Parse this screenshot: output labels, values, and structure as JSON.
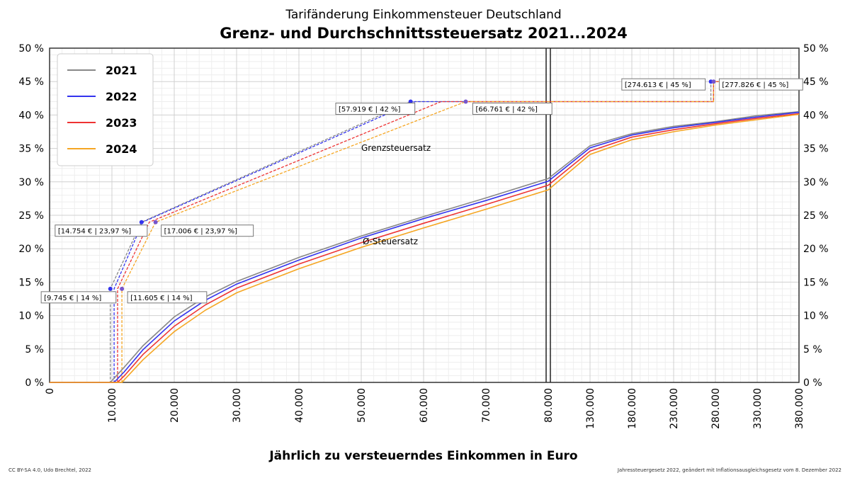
{
  "chart_data": {
    "type": "line",
    "subtitle": "Tarifänderung Einkommensteuer Deutschland",
    "title": "Grenz- und Durchschnittssteuersatz 2021...2024",
    "xlabel": "Jährlich zu versteuerndes Einkommen in Euro",
    "ylabel": "",
    "x_scale": "piecewise linear: 0–80.000 wide segment, 80.000–380.000 compressed segment",
    "xlim": [
      0,
      380000
    ],
    "ylim": [
      0,
      50
    ],
    "x_ticks_left": [
      "0",
      "10.000",
      "20.000",
      "30.000",
      "40.000",
      "50.000",
      "60.000",
      "70.000",
      "80.000"
    ],
    "x_ticks_right": [
      "130.000",
      "180.000",
      "230.000",
      "280.000",
      "330.000",
      "380.000"
    ],
    "y_ticks": [
      "0 %",
      "5 %",
      "10 %",
      "15 %",
      "20 %",
      "25 %",
      "30 %",
      "35 %",
      "40 %",
      "45 %",
      "50 %"
    ],
    "grid": true,
    "legend_position": "top-left",
    "legend": [
      "2021",
      "2022",
      "2023",
      "2024"
    ],
    "colors": {
      "2021": "#888888",
      "2022": "#3333ee",
      "2023": "#ee3333",
      "2024": "#f5a623"
    },
    "curve_labels": {
      "marginal": "Grenzsteuersatz",
      "average": "Ø-Steuersatz"
    },
    "series": [
      {
        "name": "2021",
        "type": "marginal",
        "points": [
          [
            0,
            0
          ],
          [
            9744,
            0
          ],
          [
            9744,
            14
          ],
          [
            14753,
            23.97
          ],
          [
            57918,
            42
          ],
          [
            274612,
            42
          ],
          [
            274612,
            45
          ],
          [
            380000,
            45
          ]
        ]
      },
      {
        "name": "2022",
        "type": "marginal",
        "points": [
          [
            0,
            0
          ],
          [
            10347,
            0
          ],
          [
            10347,
            14
          ],
          [
            14926,
            23.97
          ],
          [
            58596,
            42
          ],
          [
            277825,
            42
          ],
          [
            277825,
            45
          ],
          [
            380000,
            45
          ]
        ]
      },
      {
        "name": "2023",
        "type": "marginal",
        "points": [
          [
            0,
            0
          ],
          [
            10908,
            0
          ],
          [
            10908,
            14
          ],
          [
            15999,
            23.97
          ],
          [
            62809,
            42
          ],
          [
            277825,
            42
          ],
          [
            277825,
            45
          ],
          [
            380000,
            45
          ]
        ]
      },
      {
        "name": "2024",
        "type": "marginal",
        "points": [
          [
            0,
            0
          ],
          [
            11604,
            0
          ],
          [
            11604,
            14
          ],
          [
            17005,
            23.97
          ],
          [
            66760,
            42
          ],
          [
            277825,
            42
          ],
          [
            277825,
            45
          ],
          [
            380000,
            45
          ]
        ]
      },
      {
        "name": "2021",
        "type": "average",
        "points": [
          [
            0,
            0
          ],
          [
            9744,
            0
          ],
          [
            12000,
            2.3
          ],
          [
            15000,
            5.5
          ],
          [
            20000,
            9.8
          ],
          [
            25000,
            12.8
          ],
          [
            30000,
            15.1
          ],
          [
            40000,
            18.7
          ],
          [
            50000,
            21.9
          ],
          [
            60000,
            24.8
          ],
          [
            70000,
            27.6
          ],
          [
            80000,
            30.5
          ],
          [
            130000,
            35.4
          ],
          [
            180000,
            37.2
          ],
          [
            230000,
            38.3
          ],
          [
            280000,
            39.0
          ],
          [
            330000,
            39.9
          ],
          [
            380000,
            40.5
          ]
        ]
      },
      {
        "name": "2022",
        "type": "average",
        "points": [
          [
            0,
            0
          ],
          [
            10347,
            0
          ],
          [
            12000,
            1.6
          ],
          [
            15000,
            4.9
          ],
          [
            20000,
            9.2
          ],
          [
            25000,
            12.3
          ],
          [
            30000,
            14.7
          ],
          [
            40000,
            18.3
          ],
          [
            50000,
            21.6
          ],
          [
            60000,
            24.5
          ],
          [
            70000,
            27.2
          ],
          [
            80000,
            30.1
          ],
          [
            130000,
            35.1
          ],
          [
            180000,
            37.0
          ],
          [
            230000,
            38.1
          ],
          [
            280000,
            38.9
          ],
          [
            330000,
            39.7
          ],
          [
            380000,
            40.4
          ]
        ]
      },
      {
        "name": "2023",
        "type": "average",
        "points": [
          [
            0,
            0
          ],
          [
            10908,
            0
          ],
          [
            12000,
            1.0
          ],
          [
            15000,
            4.2
          ],
          [
            20000,
            8.4
          ],
          [
            25000,
            11.6
          ],
          [
            30000,
            14.1
          ],
          [
            40000,
            17.7
          ],
          [
            50000,
            20.9
          ],
          [
            60000,
            23.8
          ],
          [
            70000,
            26.6
          ],
          [
            80000,
            29.5
          ],
          [
            130000,
            34.6
          ],
          [
            180000,
            36.7
          ],
          [
            230000,
            37.8
          ],
          [
            280000,
            38.7
          ],
          [
            330000,
            39.5
          ],
          [
            380000,
            40.2
          ]
        ]
      },
      {
        "name": "2024",
        "type": "average",
        "points": [
          [
            0,
            0
          ],
          [
            11604,
            0
          ],
          [
            12000,
            0.4
          ],
          [
            15000,
            3.4
          ],
          [
            20000,
            7.6
          ],
          [
            25000,
            10.8
          ],
          [
            30000,
            13.4
          ],
          [
            40000,
            17.0
          ],
          [
            50000,
            20.2
          ],
          [
            60000,
            23.1
          ],
          [
            70000,
            25.9
          ],
          [
            80000,
            28.8
          ],
          [
            130000,
            34.1
          ],
          [
            180000,
            36.3
          ],
          [
            230000,
            37.5
          ],
          [
            280000,
            38.5
          ],
          [
            330000,
            39.3
          ],
          [
            380000,
            40.1
          ]
        ]
      }
    ],
    "annotations": [
      {
        "text": "[9.745 € | 14 %]",
        "x": 9745,
        "y": 14,
        "side": "left"
      },
      {
        "text": "[11.605 € | 14 %]",
        "x": 11605,
        "y": 14,
        "side": "right"
      },
      {
        "text": "[14.754 € | 23,97 %]",
        "x": 14754,
        "y": 23.97,
        "side": "left"
      },
      {
        "text": "[17.006 € | 23,97 %]",
        "x": 17006,
        "y": 23.97,
        "side": "right"
      },
      {
        "text": "[57.919 € | 42 %]",
        "x": 57919,
        "y": 42,
        "side": "left"
      },
      {
        "text": "[66.761 € | 42 %]",
        "x": 66761,
        "y": 42,
        "side": "right"
      },
      {
        "text": "[274.613 € | 45 %]",
        "x": 274613,
        "y": 45,
        "side": "left"
      },
      {
        "text": "[277.826 € | 45 %]",
        "x": 277826,
        "y": 45,
        "side": "right"
      }
    ],
    "footer_left": "CC BY-SA 4.0, Udo Brechtel, 2022",
    "footer_right": "Jahressteuergesetz 2022, geändert mit Inflationsausgleichsgesetz vom 8. Dezember 2022"
  }
}
